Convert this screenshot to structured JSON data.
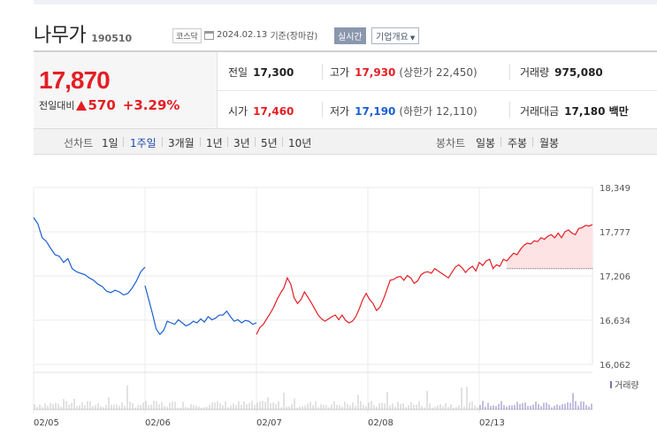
{
  "header": {
    "name": "나무가",
    "code": "190510",
    "market": "코스닥",
    "date": "2024.02.13",
    "basis": "기준(장마감)",
    "realtime_label": "실시간",
    "company_label": "기업개요"
  },
  "price": {
    "current": "17,870",
    "change_label": "전일대비",
    "change": "570",
    "change_pct": "+3.29%"
  },
  "stats": {
    "prev_close": {
      "label": "전일",
      "value": "17,300"
    },
    "high": {
      "label": "고가",
      "value": "17,930",
      "sub": "(상한가 22,450)"
    },
    "volume": {
      "label": "거래량",
      "value": "975,080"
    },
    "open": {
      "label": "시가",
      "value": "17,460"
    },
    "low": {
      "label": "저가",
      "value": "17,190",
      "sub": "(하한가 12,110)"
    },
    "amount": {
      "label": "거래대금",
      "value": "17,180 백만"
    }
  },
  "tabs": {
    "line_label": "선차트",
    "line_periods": [
      "1일",
      "1주일",
      "3개월",
      "1년",
      "3년",
      "5년",
      "10년"
    ],
    "active": "1주일",
    "candle_label": "봉차트",
    "candle_periods": [
      "일봉",
      "주봉",
      "월봉"
    ]
  },
  "colors": {
    "up": "#e41e24",
    "down": "#1a5fd1",
    "volume_legend": "#7a6fb0"
  },
  "chart_data": {
    "type": "line",
    "x_ticks": [
      "02/05",
      "02/06",
      "02/07",
      "02/08",
      "02/13"
    ],
    "y_ticks": [
      "18,349",
      "17,777",
      "17,206",
      "16,634",
      "16,062"
    ],
    "ylim": [
      16062,
      18349
    ],
    "reference_price": 17300,
    "volume_legend": "거래량",
    "segments": [
      {
        "direction": "down",
        "values": [
          17960,
          17880,
          17700,
          17650,
          17560,
          17480,
          17460,
          17380,
          17430,
          17300,
          17260,
          17240,
          17220,
          17180,
          17150,
          17100,
          17070,
          17010,
          16990,
          17020,
          17000,
          16960,
          16980,
          17050,
          17140,
          17260,
          17320
        ]
      },
      {
        "direction": "down",
        "values": [
          17080,
          16900,
          16720,
          16520,
          16450,
          16500,
          16620,
          16600,
          16580,
          16640,
          16600,
          16560,
          16580,
          16620,
          16600,
          16650,
          16610,
          16680,
          16640,
          16660,
          16700,
          16700,
          16750,
          16680,
          16620,
          16640,
          16600,
          16630,
          16620,
          16580,
          16600
        ]
      },
      {
        "direction": "up",
        "values": [
          16450,
          16540,
          16580,
          16650,
          16720,
          16800,
          16900,
          16980,
          17050,
          17180,
          17100,
          16920,
          16850,
          16900,
          17000,
          16930,
          16860,
          16780,
          16700,
          16650,
          16620,
          16650,
          16680,
          16700,
          16640,
          16700,
          16630,
          16600,
          16620,
          16680,
          16780,
          16900,
          16980,
          16900,
          16850,
          16760,
          16800,
          16900,
          17020,
          17150,
          17160,
          17190,
          17200,
          17150,
          17210,
          17180,
          17110,
          17140,
          17220,
          17250,
          17260,
          17240,
          17300,
          17270,
          17240,
          17210,
          17180,
          17250,
          17320,
          17350,
          17310,
          17250,
          17300,
          17330,
          17270,
          17380,
          17340,
          17400,
          17420,
          17300,
          17350,
          17330,
          17420,
          17400,
          17450,
          17500,
          17480,
          17550,
          17600,
          17630,
          17620,
          17660,
          17650,
          17700,
          17680,
          17720,
          17740,
          17700,
          17760,
          17700,
          17780,
          17800,
          17760,
          17740,
          17820,
          17830,
          17860,
          17850,
          17870
        ]
      }
    ]
  }
}
